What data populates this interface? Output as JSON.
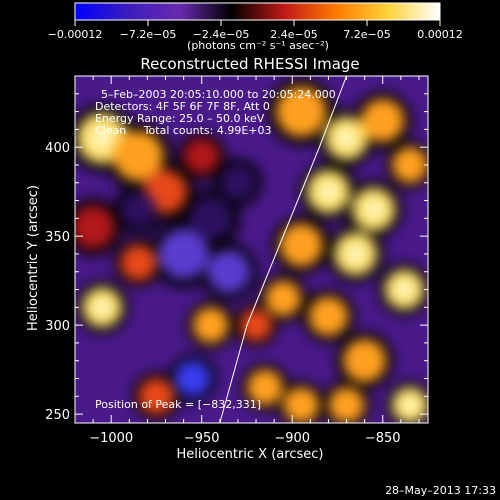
{
  "chart_data": {
    "type": "heatmap",
    "title": "Reconstructed RHESSI Image",
    "xlabel": "Heliocentric X (arcsec)",
    "ylabel": "Heliocentric Y (arcsec)",
    "xlim": [
      -1020,
      -825
    ],
    "ylim": [
      245,
      440
    ],
    "x_ticks": [
      -1000,
      -950,
      -900,
      -850
    ],
    "x_tick_labels": [
      "−1000",
      "−950",
      "−900",
      "−850"
    ],
    "y_ticks": [
      250,
      300,
      350,
      400
    ],
    "y_tick_labels": [
      "250",
      "300",
      "350",
      "400"
    ],
    "colorbar": {
      "range": [
        -0.00012,
        0.00012
      ],
      "ticks": [
        -0.00012,
        -7.2e-05,
        -2.4e-05,
        2.4e-05,
        7.2e-05,
        0.00012
      ],
      "tick_labels": [
        "−0.00012",
        "−7.2e−05",
        "−2.4e−05",
        "2.4e−05",
        "7.2e−05",
        "0.00012"
      ],
      "units_label": "(photons cm⁻² s⁻¹ asec⁻²)",
      "colormap": [
        "#0000ff",
        "#3a1dbe",
        "#6a2ab0",
        "#000000",
        "#c01818",
        "#ff7a00",
        "#ffd23c",
        "#ffffff"
      ]
    },
    "limb_curve": [
      [
        -940,
        245
      ],
      [
        -925,
        300
      ],
      [
        -905,
        350
      ],
      [
        -885,
        400
      ],
      [
        -870,
        440
      ]
    ],
    "peak": [
      -832,
      331
    ],
    "blobs": [
      {
        "x": -1005,
        "y": 405,
        "v": 1.0,
        "s": 14
      },
      {
        "x": -985,
        "y": 395,
        "v": 0.8,
        "s": 14
      },
      {
        "x": -970,
        "y": 375,
        "v": 0.7,
        "s": 12
      },
      {
        "x": -1010,
        "y": 355,
        "v": 0.6,
        "s": 12
      },
      {
        "x": -1005,
        "y": 310,
        "v": 1.0,
        "s": 11
      },
      {
        "x": -985,
        "y": 335,
        "v": 0.7,
        "s": 10
      },
      {
        "x": -945,
        "y": 300,
        "v": 0.9,
        "s": 10
      },
      {
        "x": -920,
        "y": 300,
        "v": 0.7,
        "s": 9
      },
      {
        "x": -950,
        "y": 395,
        "v": 0.6,
        "s": 10
      },
      {
        "x": -975,
        "y": 260,
        "v": 0.7,
        "s": 10
      },
      {
        "x": -915,
        "y": 265,
        "v": 0.8,
        "s": 10
      },
      {
        "x": -895,
        "y": 420,
        "v": 0.9,
        "s": 14
      },
      {
        "x": -870,
        "y": 405,
        "v": 1.0,
        "s": 12
      },
      {
        "x": -850,
        "y": 415,
        "v": 0.9,
        "s": 12
      },
      {
        "x": -880,
        "y": 375,
        "v": 1.0,
        "s": 12
      },
      {
        "x": -855,
        "y": 365,
        "v": 1.0,
        "s": 12
      },
      {
        "x": -835,
        "y": 390,
        "v": 0.9,
        "s": 10
      },
      {
        "x": -895,
        "y": 345,
        "v": 0.9,
        "s": 12
      },
      {
        "x": -865,
        "y": 340,
        "v": 1.0,
        "s": 12
      },
      {
        "x": -838,
        "y": 320,
        "v": 1.0,
        "s": 11
      },
      {
        "x": -880,
        "y": 305,
        "v": 0.9,
        "s": 11
      },
      {
        "x": -905,
        "y": 315,
        "v": 0.8,
        "s": 10
      },
      {
        "x": -860,
        "y": 280,
        "v": 0.9,
        "s": 12
      },
      {
        "x": -835,
        "y": 255,
        "v": 1.0,
        "s": 10
      },
      {
        "x": -895,
        "y": 255,
        "v": 0.9,
        "s": 10
      },
      {
        "x": -870,
        "y": 255,
        "v": 0.8,
        "s": 10
      },
      {
        "x": -960,
        "y": 340,
        "v": -0.6,
        "s": 14
      },
      {
        "x": -945,
        "y": 360,
        "v": -0.5,
        "s": 12
      },
      {
        "x": -955,
        "y": 270,
        "v": -0.9,
        "s": 10
      },
      {
        "x": -935,
        "y": 330,
        "v": -0.6,
        "s": 12
      },
      {
        "x": -985,
        "y": 365,
        "v": -0.4,
        "s": 10
      },
      {
        "x": -930,
        "y": 380,
        "v": -0.5,
        "s": 10
      }
    ]
  },
  "annotations": {
    "date_range": "5–Feb–2003 20:05:10.000 to 20:05:24.000",
    "detectors": "Detectors: 4F 5F 6F 7F 8F, Att 0",
    "energy": "Energy Range: 25.0 – 50.0 keV",
    "clean": "Clean     Total counts: 4.99E+03",
    "peak_label": "Position of Peak = [−832,331]"
  },
  "footer_timestamp": "28–May–2013 17:33"
}
